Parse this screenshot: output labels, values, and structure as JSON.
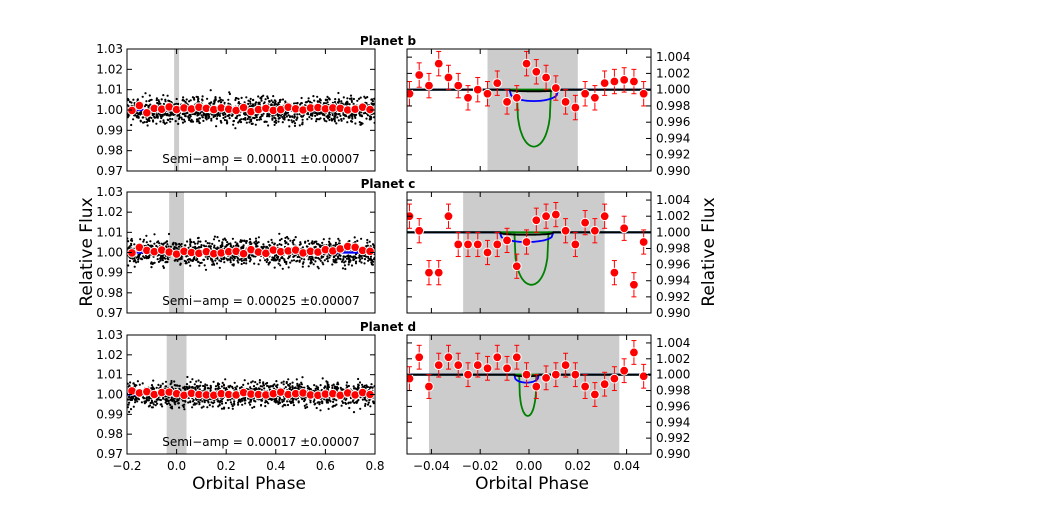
{
  "labels": {
    "ylabel_left": "Relative Flux",
    "ylabel_right": "Relative Flux",
    "xlabel_left": "Orbital Phase",
    "xlabel_right": "Orbital Phase",
    "semi_amp_prefix": "Semi−amp = "
  },
  "colors": {
    "points": "#000000",
    "binned": "#ff0000",
    "model": "#0000ff",
    "green_model": "#008000",
    "shade": "#cccccc"
  },
  "chart_data": [
    {
      "panel": "planet-b-full",
      "type": "scatter",
      "title": "Planet b",
      "xlim": [
        -0.2,
        0.8
      ],
      "ylim": [
        0.97,
        1.03
      ],
      "xticks": [],
      "yticks": [
        0.97,
        0.98,
        0.99,
        1.0,
        1.01,
        1.02,
        1.03
      ],
      "yticklabels": [
        "0.97",
        "0.98",
        "0.99",
        "1.00",
        "1.01",
        "1.02",
        "1.03"
      ],
      "shaded_region": [
        -0.01,
        0.01
      ],
      "scatter_spread": 0.0045,
      "model_flux": 1.0,
      "binned_x": [
        -0.18,
        -0.15,
        -0.12,
        -0.09,
        -0.06,
        -0.03,
        0.0,
        0.03,
        0.06,
        0.09,
        0.12,
        0.15,
        0.18,
        0.21,
        0.24,
        0.27,
        0.3,
        0.33,
        0.36,
        0.39,
        0.42,
        0.45,
        0.48,
        0.51,
        0.54,
        0.57,
        0.6,
        0.63,
        0.66,
        0.69,
        0.72,
        0.75,
        0.78
      ],
      "binned_y": [
        0.9998,
        1.0022,
        0.9986,
        1.0008,
        1.0004,
        1.0015,
        1.0002,
        1.001,
        1.0005,
        1.0014,
        1.0008,
        1.0002,
        1.001,
        1.0004,
        0.9998,
        1.0012,
        0.9992,
        1.0002,
        1.0008,
        0.9998,
        1.0002,
        1.0014,
        1.0006,
        1.0,
        1.001,
        1.0012,
        1.0006,
        1.001,
        1.0008,
        1.0,
        1.0004,
        1.0014,
        1.0002
      ],
      "semi_amp": "0.00011 ±0.00007"
    },
    {
      "panel": "planet-b-zoom",
      "type": "scatter",
      "xlim": [
        -0.05,
        0.05
      ],
      "ylim": [
        0.99,
        1.005
      ],
      "yticks": [
        0.99,
        0.992,
        0.994,
        0.996,
        0.998,
        1.0,
        1.002,
        1.004
      ],
      "yticklabels": [
        "0.990",
        "0.992",
        "0.994",
        "0.996",
        "0.998",
        "1.000",
        "1.002",
        "1.004"
      ],
      "shaded_region": [
        -0.017,
        0.02
      ],
      "points_x": [
        -0.049,
        -0.045,
        -0.041,
        -0.037,
        -0.033,
        -0.029,
        -0.025,
        -0.021,
        -0.017,
        -0.013,
        -0.009,
        -0.005,
        -0.001,
        0.003,
        0.007,
        0.011,
        0.015,
        0.019,
        0.023,
        0.027,
        0.031,
        0.035,
        0.039,
        0.043,
        0.047
      ],
      "points_y": [
        0.9995,
        1.0018,
        1.0005,
        1.0032,
        1.0015,
        1.0005,
        0.999,
        1.0,
        0.9995,
        1.0008,
        0.9985,
        0.999,
        1.0032,
        1.0022,
        1.0015,
        1.0002,
        0.9985,
        0.9978,
        0.9995,
        0.999,
        1.0008,
        1.001,
        1.0012,
        1.001,
        0.9995
      ],
      "points_err": [
        0.0015,
        0.0015,
        0.0015,
        0.0015,
        0.0015,
        0.0015,
        0.0015,
        0.0015,
        0.0015,
        0.0015,
        0.0015,
        0.0015,
        0.0015,
        0.0015,
        0.0015,
        0.0015,
        0.0015,
        0.0015,
        0.0015,
        0.0015,
        0.0015,
        0.0015,
        0.0015,
        0.0015,
        0.0015
      ],
      "black_model": {
        "t1": -0.008,
        "t2": 0.012,
        "depth": 0.0002
      },
      "blue_model": {
        "t1": -0.008,
        "t2": 0.012,
        "depth": 0.0014
      },
      "green_model": {
        "t1": -0.005,
        "t2": 0.009,
        "depth": 0.007
      }
    },
    {
      "panel": "planet-c-full",
      "type": "scatter",
      "title": "Planet c",
      "xlim": [
        -0.2,
        0.8
      ],
      "ylim": [
        0.97,
        1.03
      ],
      "xticks": [],
      "yticks": [
        0.97,
        0.98,
        0.99,
        1.0,
        1.01,
        1.02,
        1.03
      ],
      "yticklabels": [
        "0.97",
        "0.98",
        "0.99",
        "1.00",
        "1.01",
        "1.02",
        "1.03"
      ],
      "shaded_region": [
        -0.03,
        0.03
      ],
      "scatter_spread": 0.0045,
      "model_flux": 1.0,
      "binned_x": [
        -0.18,
        -0.15,
        -0.12,
        -0.09,
        -0.06,
        -0.03,
        0.0,
        0.03,
        0.06,
        0.09,
        0.12,
        0.15,
        0.18,
        0.21,
        0.24,
        0.27,
        0.3,
        0.33,
        0.36,
        0.39,
        0.42,
        0.45,
        0.48,
        0.51,
        0.54,
        0.57,
        0.6,
        0.63,
        0.66,
        0.69,
        0.72,
        0.75,
        0.78
      ],
      "binned_y": [
        0.9998,
        1.0025,
        1.001,
        1.0004,
        1.0012,
        1.0002,
        0.9992,
        1.0006,
        1.0,
        0.9996,
        1.0004,
        0.9994,
        0.9998,
        1.0004,
        1.0006,
        0.9994,
        1.0014,
        1.0002,
        0.9996,
        1.0012,
        1.0004,
        1.0008,
        1.0012,
        0.9998,
        1.0006,
        1.0002,
        1.0014,
        1.0008,
        1.0018,
        1.003,
        1.0026,
        1.001,
        1.0006
      ],
      "semi_amp": "0.00025 ±0.00007"
    },
    {
      "panel": "planet-c-zoom",
      "type": "scatter",
      "xlim": [
        -0.05,
        0.05
      ],
      "ylim": [
        0.99,
        1.005
      ],
      "yticks": [
        0.99,
        0.992,
        0.994,
        0.996,
        0.998,
        1.0,
        1.002,
        1.004
      ],
      "yticklabels": [
        "0.990",
        "0.992",
        "0.994",
        "0.996",
        "0.998",
        "1.000",
        "1.002",
        "1.004"
      ],
      "shaded_region": [
        -0.027,
        0.031
      ],
      "points_x": [
        -0.049,
        -0.045,
        -0.041,
        -0.037,
        -0.033,
        -0.029,
        -0.025,
        -0.021,
        -0.017,
        -0.013,
        -0.009,
        -0.005,
        -0.001,
        0.003,
        0.007,
        0.011,
        0.015,
        0.019,
        0.023,
        0.027,
        0.031,
        0.035,
        0.039,
        0.043,
        0.047
      ],
      "points_y": [
        1.002,
        1.0002,
        0.995,
        0.995,
        1.002,
        0.9985,
        0.9985,
        0.9985,
        0.9975,
        0.9985,
        0.999,
        0.9958,
        0.9988,
        1.0015,
        1.002,
        1.0022,
        1.0002,
        0.9985,
        1.0012,
        1.0002,
        1.002,
        0.995,
        1.0005,
        0.9935,
        0.9988
      ],
      "points_err": [
        0.0015,
        0.0015,
        0.0015,
        0.0015,
        0.0015,
        0.0015,
        0.0015,
        0.0015,
        0.0015,
        0.0015,
        0.0015,
        0.0015,
        0.0015,
        0.0015,
        0.0015,
        0.0015,
        0.0015,
        0.0015,
        0.0015,
        0.0015,
        0.0015,
        0.0015,
        0.0015,
        0.0015,
        0.0015
      ],
      "black_model": {
        "t1": -0.012,
        "t2": 0.01,
        "depth": 0.0003
      },
      "blue_model": {
        "t1": -0.012,
        "t2": 0.01,
        "depth": 0.0012
      },
      "green_model": {
        "t1": -0.006,
        "t2": 0.008,
        "depth": 0.0065
      }
    },
    {
      "panel": "planet-d-full",
      "type": "scatter",
      "title": "Planet d",
      "xlim": [
        -0.2,
        0.8
      ],
      "ylim": [
        0.97,
        1.03
      ],
      "xticks": [
        -0.2,
        0.0,
        0.2,
        0.4,
        0.6,
        0.8
      ],
      "xticklabels": [
        "−0.2",
        "0.0",
        "0.2",
        "0.4",
        "0.6",
        "0.8"
      ],
      "yticks": [
        0.97,
        0.98,
        0.99,
        1.0,
        1.01,
        1.02,
        1.03
      ],
      "yticklabels": [
        "0.97",
        "0.98",
        "0.99",
        "1.00",
        "1.01",
        "1.02",
        "1.03"
      ],
      "shaded_region": [
        -0.04,
        0.04
      ],
      "scatter_spread": 0.0045,
      "model_flux": 1.0,
      "binned_x": [
        -0.18,
        -0.15,
        -0.12,
        -0.09,
        -0.06,
        -0.03,
        0.0,
        0.03,
        0.06,
        0.09,
        0.12,
        0.15,
        0.18,
        0.21,
        0.24,
        0.27,
        0.3,
        0.33,
        0.36,
        0.39,
        0.42,
        0.45,
        0.48,
        0.51,
        0.54,
        0.57,
        0.6,
        0.63,
        0.66,
        0.69,
        0.72,
        0.75,
        0.78
      ],
      "binned_y": [
        1.0018,
        1.0008,
        1.0014,
        1.0,
        1.001,
        1.0012,
        1.0004,
        0.9996,
        1.0006,
        1.0,
        0.9998,
        0.9996,
        1.0004,
        1.0,
        0.9998,
        1.001,
        1.0002,
        1.0,
        0.9998,
        1.0004,
        1.0012,
        1.0,
        1.0004,
        1.0008,
        0.9998,
        0.9996,
        1.0002,
        1.0004,
        0.9996,
        1.0008,
        0.9998,
        1.001,
        1.0
      ],
      "semi_amp": "0.00017 ±0.00007"
    },
    {
      "panel": "planet-d-zoom",
      "type": "scatter",
      "xlim": [
        -0.05,
        0.05
      ],
      "ylim": [
        0.99,
        1.005
      ],
      "xticks": [
        -0.04,
        -0.02,
        0.0,
        0.02,
        0.04
      ],
      "xticklabels": [
        "−0.04",
        "−0.02",
        "0.00",
        "0.02",
        "0.04"
      ],
      "yticks": [
        0.99,
        0.992,
        0.994,
        0.996,
        0.998,
        1.0,
        1.002,
        1.004
      ],
      "yticklabels": [
        "0.990",
        "0.992",
        "0.994",
        "0.996",
        "0.998",
        "1.000",
        "1.002",
        "1.004"
      ],
      "shaded_region": [
        -0.041,
        0.037
      ],
      "points_x": [
        -0.049,
        -0.045,
        -0.041,
        -0.037,
        -0.033,
        -0.029,
        -0.025,
        -0.021,
        -0.017,
        -0.013,
        -0.009,
        -0.005,
        -0.001,
        0.003,
        0.007,
        0.011,
        0.015,
        0.019,
        0.023,
        0.027,
        0.031,
        0.035,
        0.039,
        0.043,
        0.047
      ],
      "points_y": [
        0.9995,
        1.0022,
        0.9985,
        1.0012,
        1.0022,
        1.0012,
        1.0,
        1.0012,
        1.0008,
        1.0022,
        1.0008,
        1.0022,
        1.0,
        0.9985,
        0.9996,
        1.0,
        1.0012,
        1.0,
        0.9985,
        0.9975,
        0.9988,
        0.9995,
        1.0005,
        1.0028,
        0.9998
      ],
      "points_err": [
        0.0015,
        0.0015,
        0.0015,
        0.0015,
        0.0015,
        0.0015,
        0.0015,
        0.0015,
        0.0015,
        0.0015,
        0.0015,
        0.0015,
        0.0015,
        0.0015,
        0.0015,
        0.0015,
        0.0015,
        0.0015,
        0.0015,
        0.0015,
        0.0015,
        0.0015,
        0.0015,
        0.0015,
        0.0015
      ],
      "black_model": {
        "t1": -0.006,
        "t2": 0.004,
        "depth": 0.0002
      },
      "blue_model": {
        "t1": -0.006,
        "t2": 0.004,
        "depth": 0.001
      },
      "green_model": {
        "t1": -0.004,
        "t2": 0.003,
        "depth": 0.0052
      }
    }
  ]
}
